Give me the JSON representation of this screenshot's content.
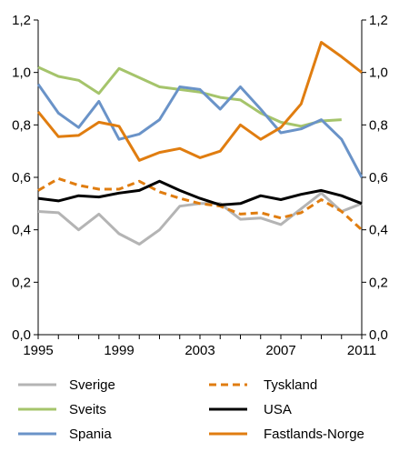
{
  "chart_data": {
    "type": "line",
    "xlim": [
      1995,
      2011
    ],
    "ylim": [
      0,
      1.2
    ],
    "y_ticks": [
      "0,0",
      "0,2",
      "0,4",
      "0,6",
      "0,8",
      "1,0",
      "1,2"
    ],
    "x_ticks": [
      "1995",
      "1999",
      "2003",
      "2007",
      "2011"
    ],
    "secondary_y_axis": true,
    "grid": false,
    "legend_position": "bottom",
    "series": [
      {
        "name": "Sverige",
        "color": "#b4b4b4",
        "dash": "solid",
        "x": [
          1995,
          1996,
          1997,
          1998,
          1999,
          2000,
          2001,
          2002,
          2003,
          2004,
          2005,
          2006,
          2007,
          2008,
          2009,
          2010,
          2011
        ],
        "values": [
          0.47,
          0.465,
          0.4,
          0.46,
          0.385,
          0.345,
          0.4,
          0.49,
          0.5,
          0.5,
          0.44,
          0.445,
          0.42,
          0.48,
          0.54,
          0.47,
          0.5
        ]
      },
      {
        "name": "Tyskland",
        "color": "#e07d10",
        "dash": "dashed",
        "x": [
          1995,
          1996,
          1997,
          1998,
          1999,
          2000,
          2001,
          2002,
          2003,
          2004,
          2005,
          2006,
          2007,
          2008,
          2009,
          2010,
          2011
        ],
        "values": [
          0.55,
          0.595,
          0.57,
          0.555,
          0.555,
          0.585,
          0.545,
          0.52,
          0.5,
          0.49,
          0.46,
          0.465,
          0.445,
          0.465,
          0.515,
          0.47,
          0.4
        ]
      },
      {
        "name": "Sveits",
        "color": "#a5c46b",
        "dash": "solid",
        "x": [
          1995,
          1996,
          1997,
          1998,
          1999,
          2000,
          2001,
          2002,
          2003,
          2004,
          2005,
          2006,
          2007,
          2008,
          2009,
          2010
        ],
        "values": [
          1.02,
          0.985,
          0.97,
          0.92,
          1.015,
          0.98,
          0.945,
          0.935,
          0.925,
          0.905,
          0.895,
          0.845,
          0.81,
          0.795,
          0.815,
          0.82
        ]
      },
      {
        "name": "USA",
        "color": "#000000",
        "dash": "solid",
        "x": [
          1995,
          1996,
          1997,
          1998,
          1999,
          2000,
          2001,
          2002,
          2003,
          2004,
          2005,
          2006,
          2007,
          2008,
          2009,
          2010,
          2011
        ],
        "values": [
          0.52,
          0.51,
          0.53,
          0.525,
          0.54,
          0.55,
          0.585,
          0.55,
          0.52,
          0.495,
          0.5,
          0.53,
          0.515,
          0.535,
          0.55,
          0.53,
          0.5
        ]
      },
      {
        "name": "Spania",
        "color": "#6a93c8",
        "dash": "solid",
        "x": [
          1995,
          1996,
          1997,
          1998,
          1999,
          2000,
          2001,
          2002,
          2003,
          2004,
          2005,
          2006,
          2007,
          2008,
          2009,
          2010,
          2011
        ],
        "values": [
          0.955,
          0.845,
          0.79,
          0.89,
          0.745,
          0.765,
          0.82,
          0.945,
          0.935,
          0.86,
          0.945,
          0.86,
          0.77,
          0.785,
          0.82,
          0.745,
          0.6
        ]
      },
      {
        "name": "Fastlands-Norge",
        "color": "#e07d10",
        "dash": "solid",
        "x": [
          1995,
          1996,
          1997,
          1998,
          1999,
          2000,
          2001,
          2002,
          2003,
          2004,
          2005,
          2006,
          2007,
          2008,
          2009,
          2010,
          2011
        ],
        "values": [
          0.85,
          0.755,
          0.76,
          0.81,
          0.795,
          0.665,
          0.695,
          0.71,
          0.675,
          0.7,
          0.8,
          0.745,
          0.79,
          0.88,
          1.115,
          1.06,
          1.0
        ]
      }
    ],
    "legend_layout": [
      [
        "Sverige",
        "Tyskland"
      ],
      [
        "Sveits",
        "USA"
      ],
      [
        "Spania",
        "Fastlands-Norge"
      ]
    ]
  }
}
